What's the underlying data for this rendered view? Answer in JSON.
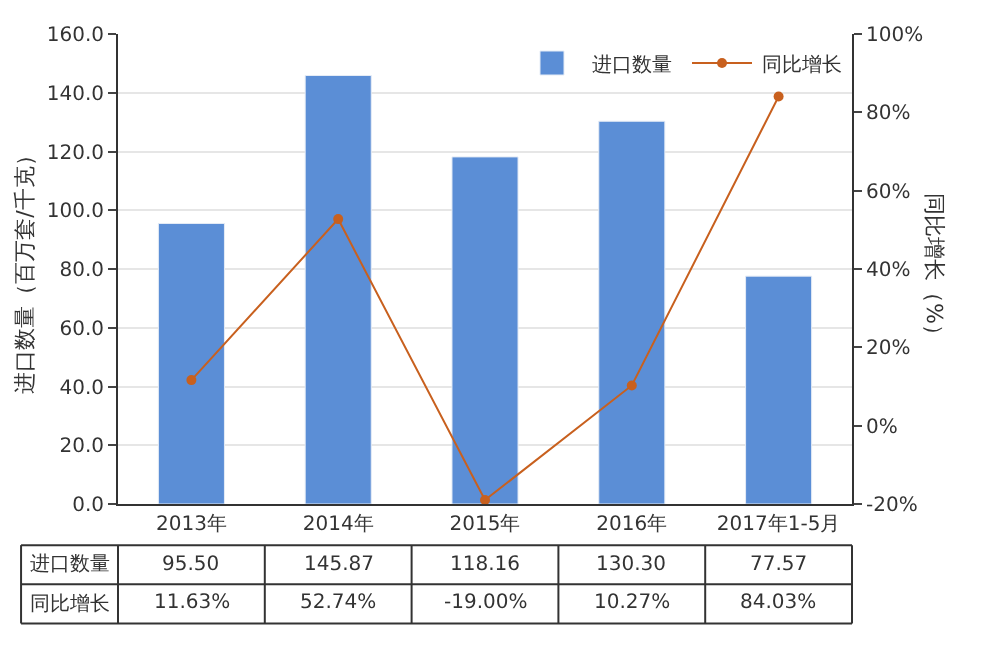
{
  "chart_data": {
    "type": "bar",
    "categories": [
      "2013年",
      "2014年",
      "2015年",
      "2016年",
      "2017年1-5月"
    ],
    "ylabel": "进口数量（百万套/千克）",
    "y2label": "同比增长（%）",
    "ylim": [
      0,
      160
    ],
    "yticks": [
      {
        "value": 0,
        "label": "0.0"
      },
      {
        "value": 20,
        "label": "20.0"
      },
      {
        "value": 40,
        "label": "40.0"
      },
      {
        "value": 60,
        "label": "60.0"
      },
      {
        "value": 80,
        "label": "80.0"
      },
      {
        "value": 100,
        "label": "100.0"
      },
      {
        "value": 120,
        "label": "120.0"
      },
      {
        "value": 140,
        "label": "140.0"
      },
      {
        "value": 160,
        "label": "160.0"
      }
    ],
    "y2lim": [
      -20,
      100
    ],
    "y2ticks": [
      {
        "value": -20,
        "label": "-20%"
      },
      {
        "value": 0,
        "label": "0%"
      },
      {
        "value": 20,
        "label": "20%"
      },
      {
        "value": 40,
        "label": "40%"
      },
      {
        "value": 60,
        "label": "60%"
      },
      {
        "value": 80,
        "label": "80%"
      },
      {
        "value": 100,
        "label": "100%"
      }
    ],
    "series": [
      {
        "name": "进口数量",
        "color": "#5b8ed6",
        "values": [
          95.5,
          145.87,
          118.16,
          130.3,
          77.57
        ],
        "value_labels": [
          "95.50",
          "145.87",
          "118.16",
          "130.30",
          "77.57"
        ]
      },
      {
        "name": "同比增长",
        "type": "line",
        "axis": "y2",
        "color": "#c8601e",
        "marker": "circle",
        "values": [
          11.63,
          52.74,
          -19.0,
          10.27,
          84.03
        ],
        "value_labels": [
          "11.63%",
          "52.74%",
          "-19.00%",
          "10.27%",
          "84.03%"
        ]
      }
    ],
    "grid": "y",
    "legend": "top right"
  }
}
